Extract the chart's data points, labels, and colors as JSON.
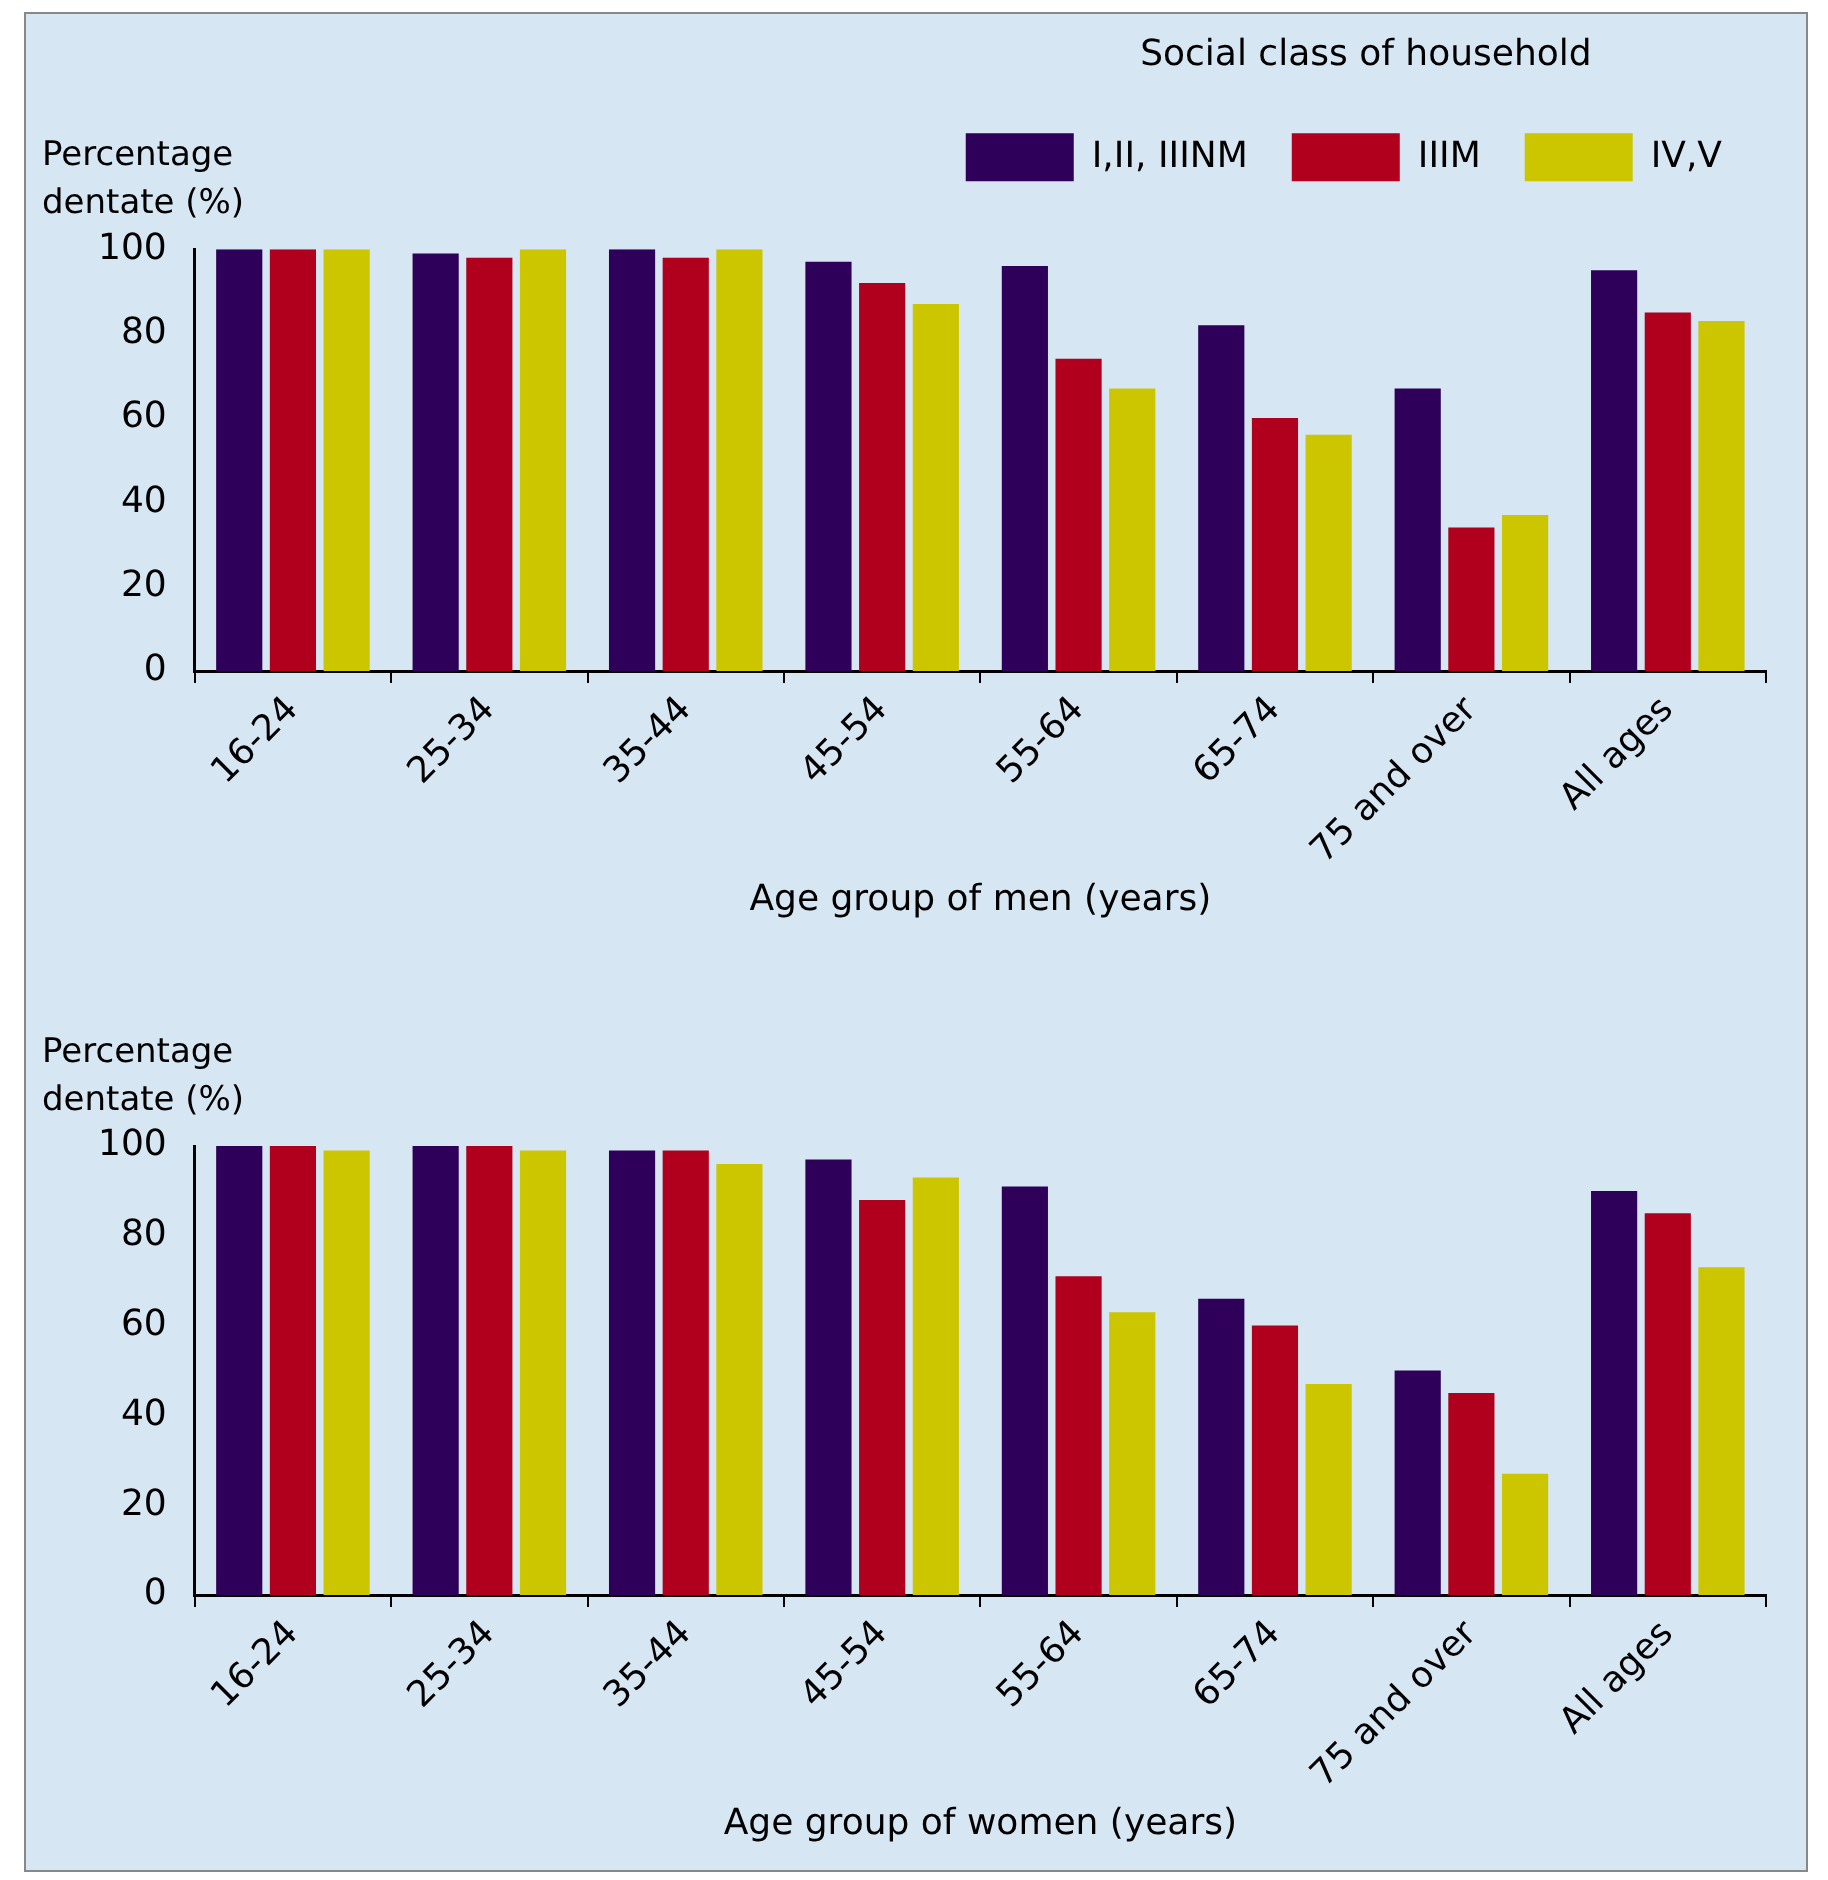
{
  "chart_data": [
    {
      "type": "bar",
      "ylabel": "Percentage dentate (%)",
      "xlabel": "Age group of men (years)",
      "legend_title": "Social class of household",
      "categories": [
        "16-24",
        "25-34",
        "35-44",
        "45-54",
        "55-64",
        "65-74",
        "75 and over",
        "All ages"
      ],
      "series": [
        {
          "name": "I,II, IIINM",
          "color": "#2e0059",
          "values": [
            100,
            99,
            100,
            97,
            96,
            82,
            67,
            95
          ]
        },
        {
          "name": "IIIM",
          "color": "#b0001e",
          "values": [
            100,
            98,
            98,
            92,
            74,
            60,
            34,
            85
          ]
        },
        {
          "name": "IV,V",
          "color": "#cbc600",
          "values": [
            100,
            100,
            100,
            87,
            67,
            56,
            37,
            83
          ]
        }
      ],
      "ylim": [
        0,
        100
      ],
      "yticks": [
        0,
        20,
        40,
        60,
        80,
        100
      ],
      "grid": false,
      "legend": "top right"
    },
    {
      "type": "bar",
      "ylabel": "Percentage dentate (%)",
      "xlabel": "Age group of women (years)",
      "categories": [
        "16-24",
        "25-34",
        "35-44",
        "45-54",
        "55-64",
        "65-74",
        "75 and over",
        "All ages"
      ],
      "series": [
        {
          "color": "#2e0059",
          "values": [
            100,
            100,
            99,
            97,
            91,
            66,
            50,
            90
          ]
        },
        {
          "color": "#b0001e",
          "values": [
            100,
            100,
            99,
            88,
            71,
            60,
            45,
            85
          ]
        },
        {
          "color": "#cbc600",
          "values": [
            99,
            99,
            96,
            93,
            63,
            47,
            27,
            73
          ]
        }
      ],
      "ylim": [
        0,
        100
      ],
      "yticks": [
        0,
        20,
        40,
        60,
        80,
        100
      ],
      "grid": false
    }
  ]
}
